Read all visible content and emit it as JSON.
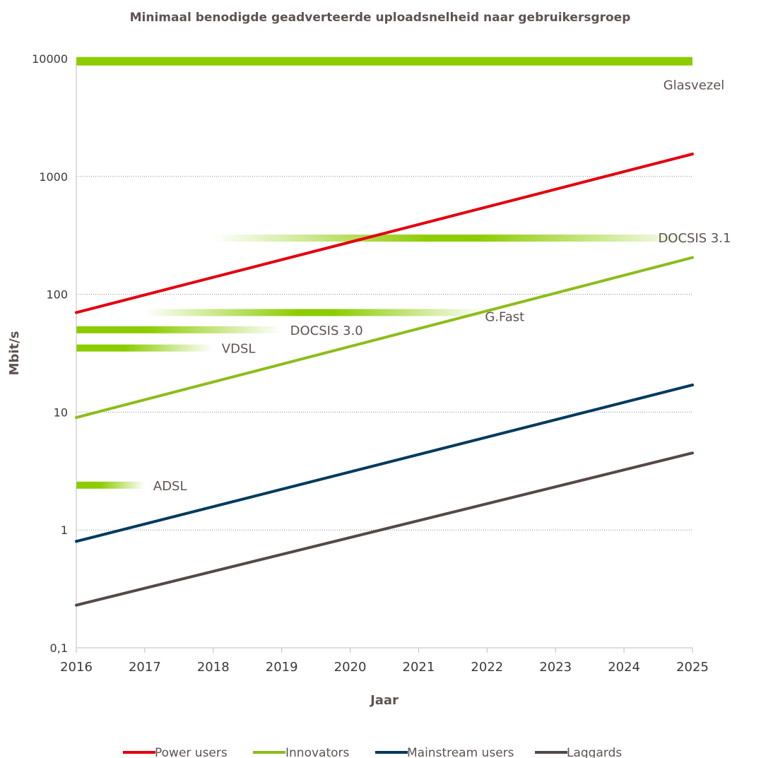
{
  "chart_data": {
    "type": "line",
    "title": "Minimaal benodigde geadverteerde uploadsnelheid naar gebruikersgroep",
    "xlabel": "Jaar",
    "ylabel": "Mbit/s",
    "yscale": "log",
    "ylim": [
      0.1,
      10000
    ],
    "xlim": [
      2016,
      2025
    ],
    "x_ticks": [
      "2016",
      "2017",
      "2018",
      "2019",
      "2020",
      "2021",
      "2022",
      "2023",
      "2024",
      "2025"
    ],
    "y_ticks": [
      {
        "value": 0.1,
        "label": "0,1"
      },
      {
        "value": 1,
        "label": "1"
      },
      {
        "value": 10,
        "label": "10"
      },
      {
        "value": 100,
        "label": "100"
      },
      {
        "value": 1000,
        "label": "1000"
      },
      {
        "value": 10000,
        "label": "10000"
      }
    ],
    "grid": "horizontal dotted",
    "legend_position": "bottom",
    "series": [
      {
        "name": "Power users",
        "color": "#e3000f",
        "x": [
          2016,
          2025
        ],
        "values": [
          70,
          1550
        ]
      },
      {
        "name": "Innovators",
        "color": "#8cbd1a",
        "x": [
          2016,
          2025
        ],
        "values": [
          9,
          205
        ]
      },
      {
        "name": "Mainstream users",
        "color": "#003a5d",
        "x": [
          2016,
          2025
        ],
        "values": [
          0.8,
          17
        ]
      },
      {
        "name": "Laggards",
        "color": "#554948",
        "x": [
          2016,
          2025
        ],
        "values": [
          0.23,
          4.5
        ]
      }
    ],
    "technologies": [
      {
        "label": "Glasvezel",
        "value": 9500,
        "x_start": 2016,
        "x_end": 2025,
        "fade": "none"
      },
      {
        "label": "DOCSIS 3.1",
        "value": 300,
        "x_start": 2018,
        "x_end": 2025,
        "fade": "both"
      },
      {
        "label": "G.Fast",
        "value": 70,
        "x_start": 2017,
        "x_end": 2022,
        "fade": "both"
      },
      {
        "label": "DOCSIS 3.0",
        "value": 50,
        "x_start": 2016,
        "x_end": 2019,
        "fade": "right"
      },
      {
        "label": "VDSL",
        "value": 35,
        "x_start": 2016,
        "x_end": 2018,
        "fade": "right"
      },
      {
        "label": "ADSL",
        "value": 2.4,
        "x_start": 2016,
        "x_end": 2017,
        "fade": "right"
      }
    ]
  }
}
